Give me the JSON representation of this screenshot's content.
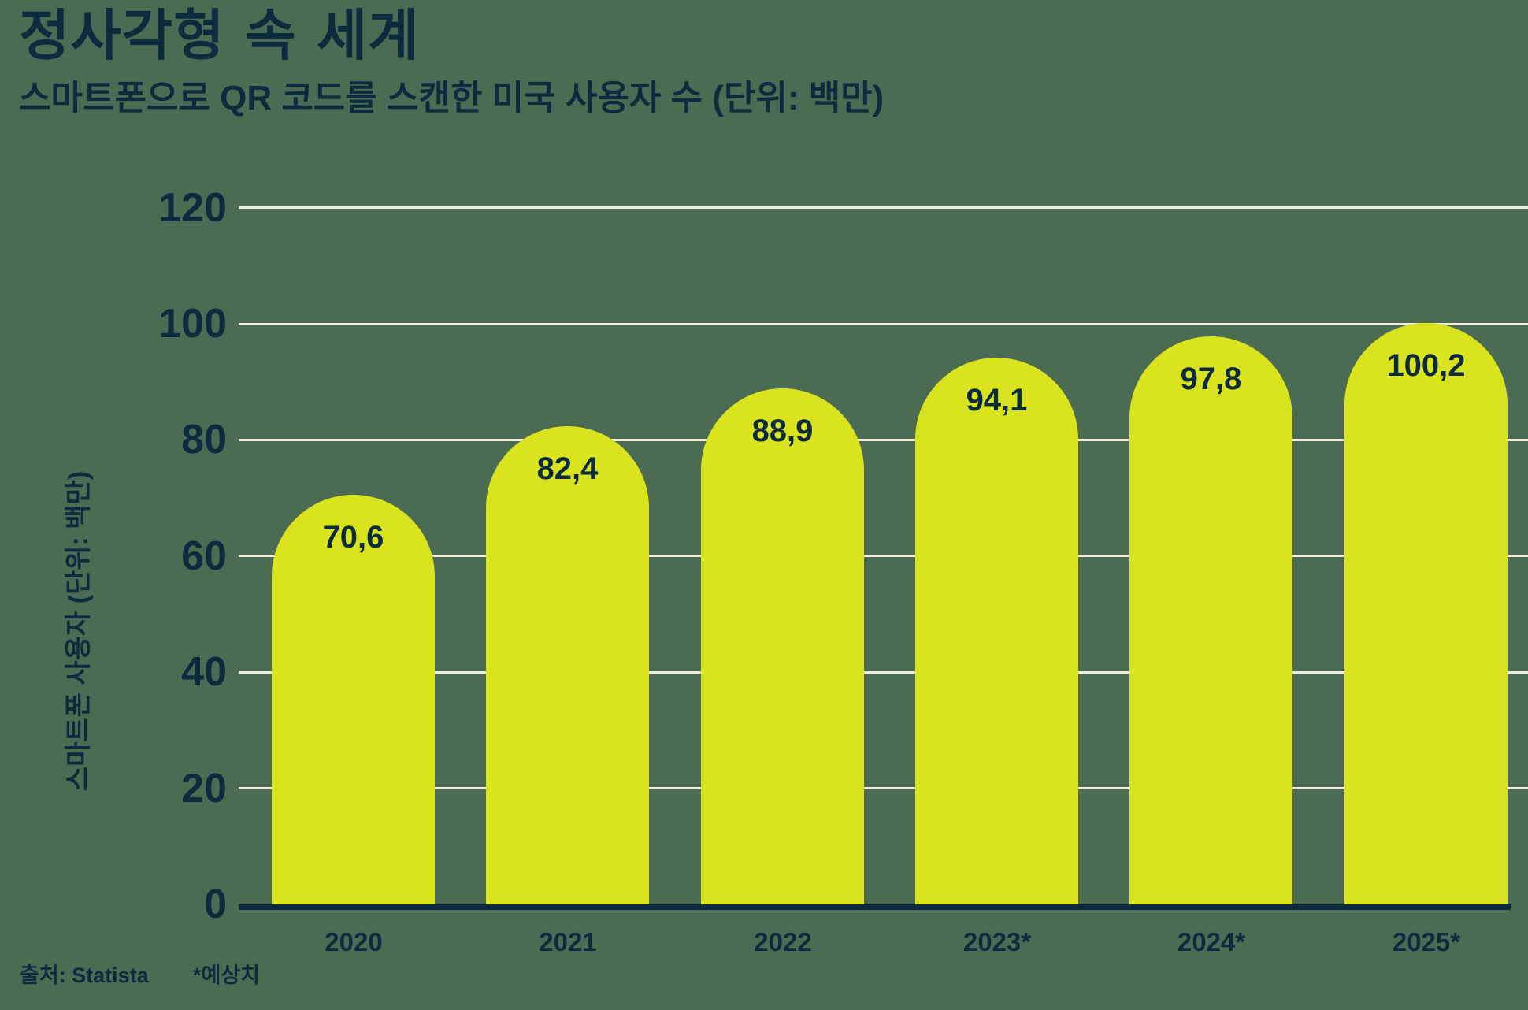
{
  "chart_data": {
    "type": "bar",
    "title": "정사각형 속 세계",
    "subtitle": "스마트폰으로 QR 코드를 스캔한 미국 사용자 수 (단위: 백만)",
    "ylabel": "스마트폰 사용자 (단위: 백만)",
    "xlabel": "",
    "categories": [
      "2020",
      "2021",
      "2022",
      "2023*",
      "2024*",
      "2025*"
    ],
    "values": [
      70.6,
      82.4,
      88.9,
      94.1,
      97.8,
      100.2
    ],
    "value_labels": [
      "70,6",
      "82,4",
      "88,9",
      "94,1",
      "97,8",
      "100,2"
    ],
    "yticks": [
      0,
      20,
      40,
      60,
      80,
      100,
      120
    ],
    "ylim": [
      0,
      120
    ],
    "grid": true,
    "legend": false,
    "bar_shape": "rounded-top",
    "source": "출처: Statista",
    "footnote": "*예상치"
  },
  "colors": {
    "background": "#4b6c52",
    "bar": "#d9e41f",
    "text": "#0c2b3e",
    "gridline": "#f2ecd9"
  }
}
